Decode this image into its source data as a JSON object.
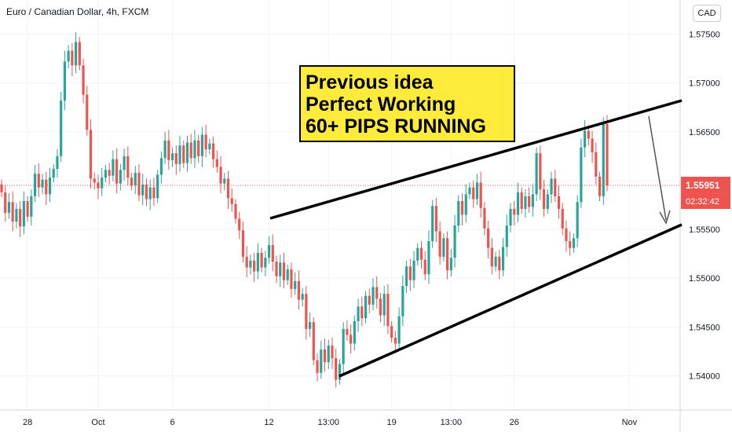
{
  "header": {
    "symbol_title": "Euro / Canadian Dollar, 4h, FXCM",
    "currency_button": "CAD"
  },
  "annotation": {
    "line1": "Previous idea",
    "line2": "Perfect Working",
    "line3": "60+ PIPS RUNNING"
  },
  "price_badge": {
    "price": "1.55951",
    "countdown": "02:32:42"
  },
  "colors": {
    "up": "#26a69a",
    "down": "#ef5350",
    "price_line": "#ef5350",
    "trendline": "#000000",
    "arrow": "#555555"
  },
  "chart_data": {
    "type": "candlestick",
    "title": "Euro / Canadian Dollar, 4h, FXCM",
    "currency": "CAD",
    "ylim": [
      1.5365,
      1.5785
    ],
    "y_ticks": [
      1.54,
      1.545,
      1.55,
      1.555,
      1.56,
      1.565,
      1.57,
      1.575
    ],
    "y_tick_labels": [
      "1.54000",
      "1.54500",
      "1.55000",
      "1.55500",
      "1.56000",
      "1.56500",
      "1.57000",
      "1.57500"
    ],
    "x_ticks": [
      {
        "label": "28",
        "bar": 7
      },
      {
        "label": "Oct",
        "bar": 26
      },
      {
        "label": "6",
        "bar": 46
      },
      {
        "label": "12",
        "bar": 72
      },
      {
        "label": "13:00",
        "bar": 88
      },
      {
        "label": "19",
        "bar": 105
      },
      {
        "label": "13:00",
        "bar": 121
      },
      {
        "label": "26",
        "bar": 138
      },
      {
        "label": "Nov",
        "bar": 169
      }
    ],
    "last_price": 1.55951,
    "countdown": "02:32:42",
    "closes": [
      1.5588,
      1.5567,
      1.5578,
      1.5558,
      1.5571,
      1.5553,
      1.5579,
      1.5563,
      1.5584,
      1.5607,
      1.5593,
      1.5601,
      1.5586,
      1.5603,
      1.5612,
      1.5625,
      1.5682,
      1.5722,
      1.5733,
      1.5718,
      1.5742,
      1.5718,
      1.5688,
      1.5652,
      1.5602,
      1.5598,
      1.5592,
      1.5603,
      1.5611,
      1.5605,
      1.5622,
      1.5597,
      1.5611,
      1.5625,
      1.5603,
      1.5595,
      1.5608,
      1.5585,
      1.5596,
      1.5581,
      1.5593,
      1.5582,
      1.5606,
      1.5623,
      1.5641,
      1.5621,
      1.5628,
      1.5617,
      1.5636,
      1.5618,
      1.5639,
      1.5623,
      1.5641,
      1.5625,
      1.5647,
      1.5632,
      1.5638,
      1.5622,
      1.5614,
      1.5597,
      1.5602,
      1.5582,
      1.5576,
      1.5561,
      1.5549,
      1.5522,
      1.5511,
      1.5518,
      1.5507,
      1.5526,
      1.5511,
      1.5521,
      1.5534,
      1.5517,
      1.5502,
      1.5516,
      1.5498,
      1.5509,
      1.5489,
      1.5497,
      1.5478,
      1.5484,
      1.5448,
      1.5455,
      1.5416,
      1.5403,
      1.5427,
      1.5414,
      1.5431,
      1.5418,
      1.5396,
      1.5412,
      1.5448,
      1.5442,
      1.5433,
      1.5456,
      1.5471,
      1.5459,
      1.5482,
      1.5473,
      1.5491,
      1.5479,
      1.5462,
      1.5484,
      1.5451,
      1.5439,
      1.5433,
      1.5461,
      1.5492,
      1.5512,
      1.5498,
      1.5518,
      1.5531,
      1.5519,
      1.5504,
      1.5538,
      1.5574,
      1.5548,
      1.5522,
      1.5541,
      1.5508,
      1.5521,
      1.5554,
      1.5579,
      1.5565,
      1.5586,
      1.5593,
      1.5581,
      1.5598,
      1.5572,
      1.5551,
      1.5531,
      1.5512,
      1.5522,
      1.5508,
      1.5532,
      1.5554,
      1.5571,
      1.5565,
      1.5588,
      1.5571,
      1.5584,
      1.5573,
      1.5586,
      1.5628,
      1.5591,
      1.5571,
      1.5586,
      1.5602,
      1.5584,
      1.5571,
      1.5551,
      1.5538,
      1.5531,
      1.5541,
      1.5578,
      1.5634,
      1.5651,
      1.5643,
      1.5629,
      1.5604,
      1.5584,
      1.5658,
      1.5595
    ]
  }
}
